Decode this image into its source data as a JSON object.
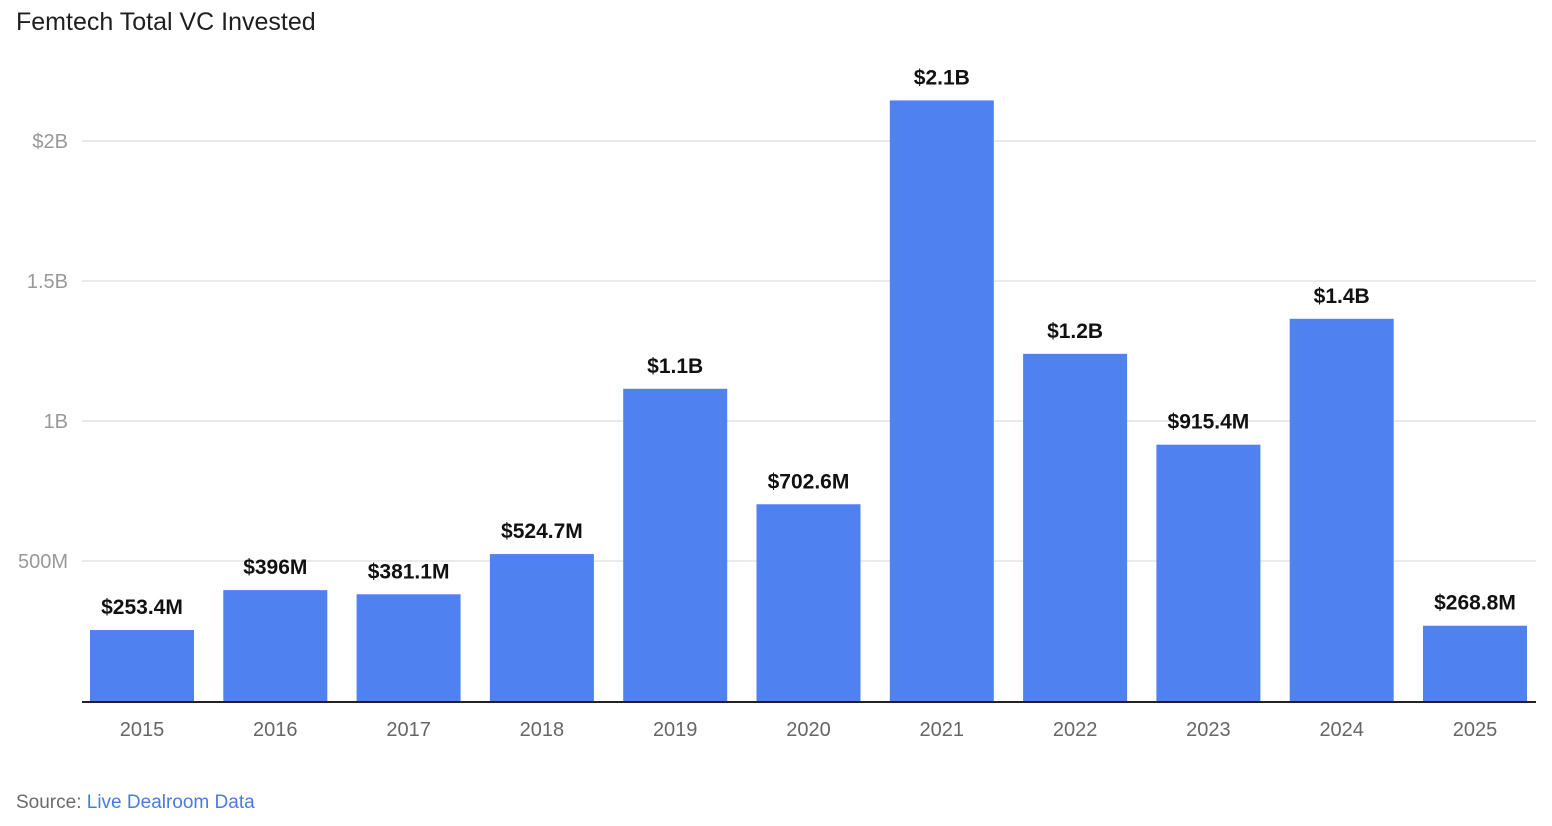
{
  "title": "Femtech Total VC Invested",
  "source": {
    "prefix": "Source:",
    "link_text": "Live Dealroom Data"
  },
  "colors": {
    "bar": "#5081f0",
    "grid": "#e3e3e3",
    "axis": "#222222",
    "tick_text": "#999999",
    "xtick_text": "#666666",
    "label_text": "#111111",
    "link": "#4a7be0"
  },
  "chart_data": {
    "type": "bar",
    "title": "Femtech Total VC Invested",
    "xlabel": "",
    "ylabel": "",
    "categories": [
      "2015",
      "2016",
      "2017",
      "2018",
      "2019",
      "2020",
      "2021",
      "2022",
      "2023",
      "2024",
      "2025"
    ],
    "values": [
      253.4,
      396,
      381.1,
      524.7,
      1115,
      702.6,
      2145,
      1240,
      915.4,
      1365,
      268.8
    ],
    "value_units": "millions USD",
    "data_labels": [
      "$253.4M",
      "$396M",
      "$381.1M",
      "$524.7M",
      "$1.1B",
      "$702.6M",
      "$2.1B",
      "$1.2B",
      "$915.4M",
      "$1.4B",
      "$268.8M"
    ],
    "ylim": [
      0,
      2000
    ],
    "yticks": [
      {
        "value": 500,
        "label": "500M"
      },
      {
        "value": 1000,
        "label": "1B"
      },
      {
        "value": 1500,
        "label": "1.5B"
      },
      {
        "value": 2000,
        "label": "$2B"
      }
    ],
    "grid": true,
    "legend": "none"
  }
}
